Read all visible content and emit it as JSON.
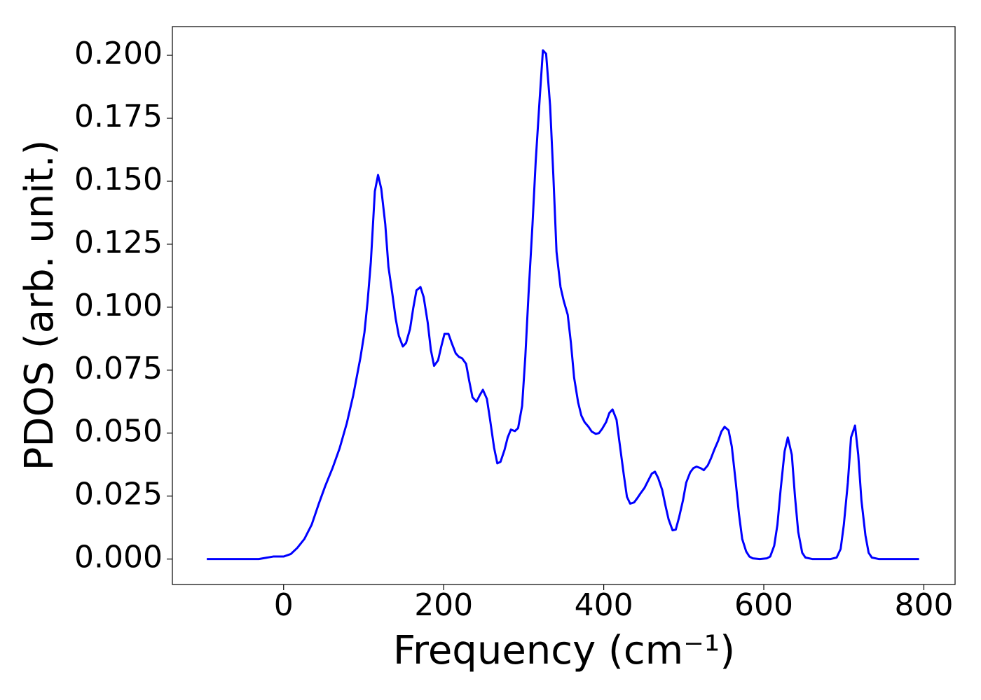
{
  "chart_data": {
    "type": "line",
    "x_label": "Frequency (cm⁻¹)",
    "y_label": "PDOS (arb. unit.)",
    "color": "#0000ff",
    "x": [
      -96,
      -31,
      -13,
      0,
      9,
      17,
      26,
      35,
      44,
      52,
      61,
      70,
      79,
      87,
      96,
      101,
      105,
      109,
      114,
      118,
      122,
      127,
      131,
      136,
      140,
      144,
      149,
      153,
      158,
      162,
      166,
      171,
      175,
      180,
      184,
      188,
      193,
      197,
      201,
      206,
      210,
      215,
      219,
      223,
      228,
      232,
      236,
      241,
      245,
      249,
      254,
      258,
      263,
      267,
      271,
      276,
      280,
      284,
      289,
      293,
      298,
      302,
      306,
      311,
      315,
      320,
      324,
      328,
      333,
      337,
      341,
      346,
      350,
      355,
      359,
      363,
      368,
      372,
      376,
      381,
      385,
      390,
      394,
      398,
      403,
      407,
      411,
      416,
      420,
      425,
      429,
      433,
      438,
      442,
      446,
      451,
      455,
      460,
      464,
      468,
      473,
      477,
      481,
      486,
      490,
      494,
      499,
      503,
      508,
      512,
      516,
      521,
      525,
      530,
      534,
      538,
      543,
      547,
      551,
      556,
      560,
      565,
      569,
      573,
      578,
      582,
      586,
      595,
      604,
      608,
      613,
      617,
      621,
      626,
      630,
      635,
      639,
      643,
      648,
      652,
      661,
      683,
      691,
      696,
      700,
      705,
      709,
      714,
      718,
      722,
      727,
      731,
      735,
      744,
      794
    ],
    "values": [
      0,
      0,
      0.001,
      0.001,
      0.002,
      0.0044,
      0.008,
      0.0136,
      0.022,
      0.029,
      0.036,
      0.044,
      0.054,
      0.065,
      0.08,
      0.09,
      0.1025,
      0.118,
      0.146,
      0.1525,
      0.147,
      0.133,
      0.116,
      0.105,
      0.0955,
      0.0886,
      0.0844,
      0.0858,
      0.0914,
      0.0997,
      0.1067,
      0.108,
      0.104,
      0.094,
      0.083,
      0.0767,
      0.0789,
      0.0844,
      0.0894,
      0.0894,
      0.0858,
      0.0817,
      0.0803,
      0.0797,
      0.0775,
      0.0706,
      0.0642,
      0.0625,
      0.065,
      0.0672,
      0.0636,
      0.0553,
      0.0442,
      0.038,
      0.0386,
      0.0433,
      0.0483,
      0.0514,
      0.0508,
      0.052,
      0.0608,
      0.0803,
      0.105,
      0.133,
      0.158,
      0.183,
      0.202,
      0.2006,
      0.18,
      0.1525,
      0.122,
      0.108,
      0.1025,
      0.097,
      0.0858,
      0.072,
      0.0622,
      0.057,
      0.0544,
      0.0525,
      0.0506,
      0.0497,
      0.05,
      0.0517,
      0.0544,
      0.058,
      0.0594,
      0.0553,
      0.0456,
      0.0336,
      0.0247,
      0.022,
      0.0225,
      0.0242,
      0.0261,
      0.0283,
      0.0308,
      0.0339,
      0.0347,
      0.0322,
      0.0275,
      0.0214,
      0.0158,
      0.0114,
      0.0117,
      0.0164,
      0.0233,
      0.0303,
      0.0344,
      0.0361,
      0.0367,
      0.0361,
      0.0353,
      0.0372,
      0.04,
      0.0433,
      0.047,
      0.0506,
      0.0525,
      0.0511,
      0.0447,
      0.0303,
      0.0178,
      0.008,
      0.003,
      0.001,
      0.0003,
      0,
      0.0003,
      0.001,
      0.0053,
      0.0136,
      0.0275,
      0.0428,
      0.0483,
      0.0414,
      0.0247,
      0.0108,
      0.0025,
      0.0006,
      0,
      0,
      0.0006,
      0.004,
      0.0136,
      0.0303,
      0.0483,
      0.053,
      0.0414,
      0.0233,
      0.0094,
      0.0025,
      0.0006,
      0,
      0
    ],
    "xlim": [
      -139,
      839
    ],
    "ylim": [
      -0.0101,
      0.2114
    ],
    "xticks": [
      0,
      200,
      400,
      600,
      800
    ],
    "yticks": [
      {
        "value": 0,
        "label": "0.000"
      },
      {
        "value": 0.025,
        "label": "0.025"
      },
      {
        "value": 0.05,
        "label": "0.050"
      },
      {
        "value": 0.075,
        "label": "0.075"
      },
      {
        "value": 0.1,
        "label": "0.100"
      },
      {
        "value": 0.125,
        "label": "0.125"
      },
      {
        "value": 0.15,
        "label": "0.150"
      },
      {
        "value": 0.175,
        "label": "0.175"
      },
      {
        "value": 0.2,
        "label": "0.200"
      }
    ]
  }
}
